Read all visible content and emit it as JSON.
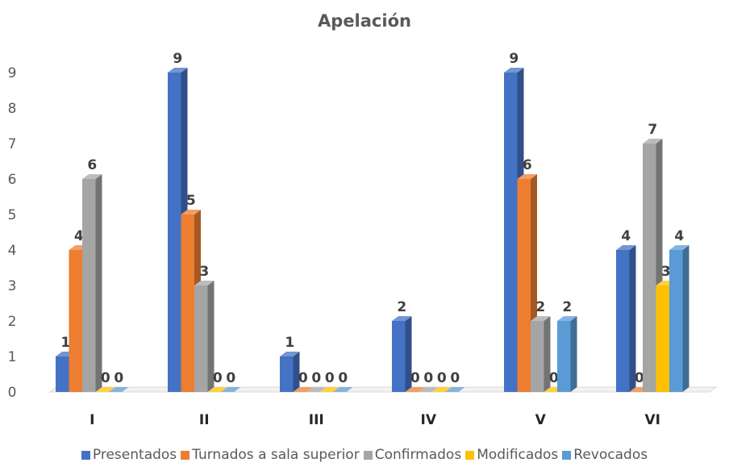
{
  "chart_data": {
    "type": "bar",
    "title": "Apelación",
    "categories": [
      "I",
      "II",
      "III",
      "IV",
      "V",
      "VI"
    ],
    "series": [
      {
        "name": "Presentados",
        "values": [
          1,
          9,
          1,
          2,
          9,
          4
        ],
        "color": "#4472C4"
      },
      {
        "name": "Turnados a sala superior",
        "values": [
          4,
          5,
          0,
          0,
          6,
          0
        ],
        "color": "#ED7D31"
      },
      {
        "name": "Confirmados",
        "values": [
          6,
          3,
          0,
          0,
          2,
          7
        ],
        "color": "#A5A5A5"
      },
      {
        "name": "Modificados",
        "values": [
          0,
          0,
          0,
          0,
          0,
          3
        ],
        "color": "#FFC000"
      },
      {
        "name": "Revocados",
        "values": [
          0,
          0,
          0,
          0,
          2,
          4
        ],
        "color": "#5B9BD5"
      }
    ],
    "ylim": [
      0,
      9
    ],
    "yticks": [
      0,
      1,
      2,
      3,
      4,
      5,
      6,
      7,
      8,
      9
    ],
    "grid": false,
    "bar_style": "3d",
    "legend_position": "bottom"
  }
}
